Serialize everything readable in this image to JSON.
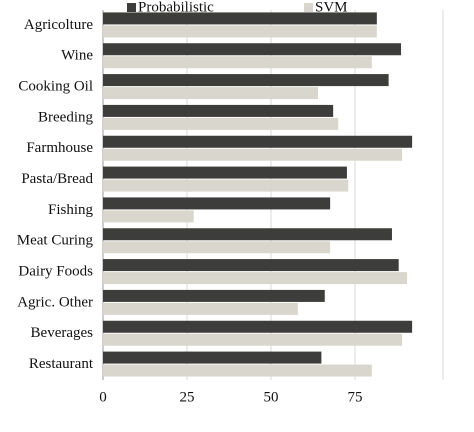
{
  "chart_data": {
    "type": "barh",
    "categories": [
      "Agricolture",
      "Wine",
      "Cooking Oil",
      "Breeding",
      "Farmhouse",
      "Pasta/Bread",
      "Fishing",
      "Meat Curing",
      "Dairy Foods",
      "Agric. Other",
      "Beverages",
      "Restaurant"
    ],
    "series": [
      {
        "name": "Probabilistic",
        "color": "#3d3d3b",
        "values": [
          81.5,
          88.7,
          85,
          68.5,
          92,
          72.6,
          67.6,
          86,
          88,
          66,
          92,
          65
        ]
      },
      {
        "name": "SVM",
        "color": "#d9d7cd",
        "values": [
          81.5,
          80,
          64,
          70,
          89,
          73,
          27,
          67.6,
          90.5,
          58,
          89,
          80
        ]
      }
    ],
    "xlim": [
      0,
      100
    ],
    "xticks": [
      0,
      25,
      50,
      75
    ],
    "grid": true,
    "legend": "top"
  }
}
